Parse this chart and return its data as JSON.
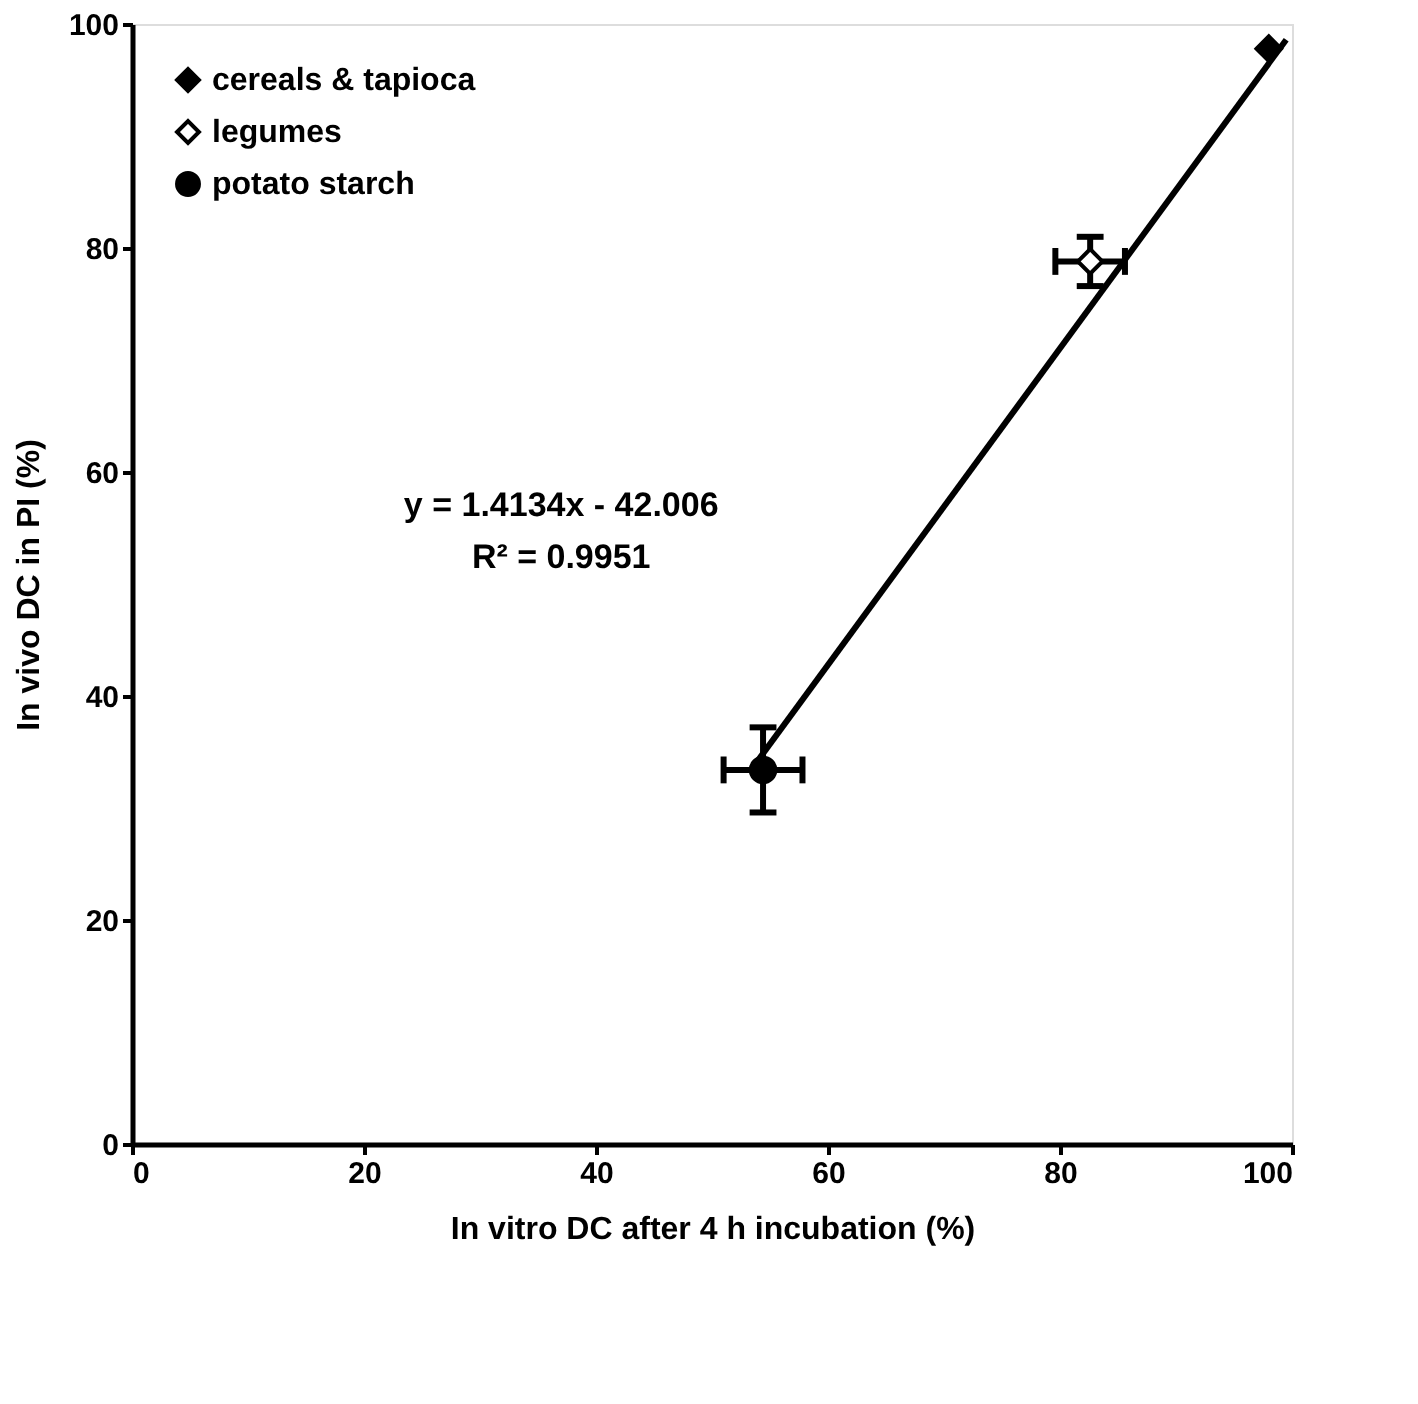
{
  "chart_data": {
    "type": "scatter",
    "xlabel": "In vitro DC after 4 h incubation (%)",
    "ylabel": "In vivo DC in PI (%)",
    "xlim": [
      0,
      100
    ],
    "xticks": [
      0,
      20,
      40,
      60,
      80,
      100
    ],
    "ylim": [
      0,
      100
    ],
    "yticks": [
      0,
      20,
      40,
      60,
      80,
      100
    ],
    "legend": "top left",
    "grid": false,
    "series": [
      {
        "name": "cereals & tapioca",
        "color": "#000000",
        "marker": "diamond",
        "x": [
          98
        ],
        "values": [
          97.8
        ]
      },
      {
        "name": "legumes",
        "color": "#ffffff",
        "marker": "diamond",
        "x": [
          82.6
        ],
        "values": [
          78.8
        ],
        "errors": [
          2.2
        ],
        "xerrors": [
          3
        ]
      },
      {
        "name": "potato starch",
        "color": "#000000",
        "marker": "circle",
        "x": [
          54.4
        ],
        "values": [
          33.4
        ],
        "errors": [
          3.8
        ],
        "xerrors": [
          3.4
        ]
      },
      {
        "type": "line",
        "color": "#000000",
        "x": [
          53.5,
          99.5
        ],
        "values": [
          33.6,
          98.6
        ]
      }
    ],
    "annotations": [
      "y = 1.4134x - 42.006",
      "R² = 0.9951"
    ]
  }
}
